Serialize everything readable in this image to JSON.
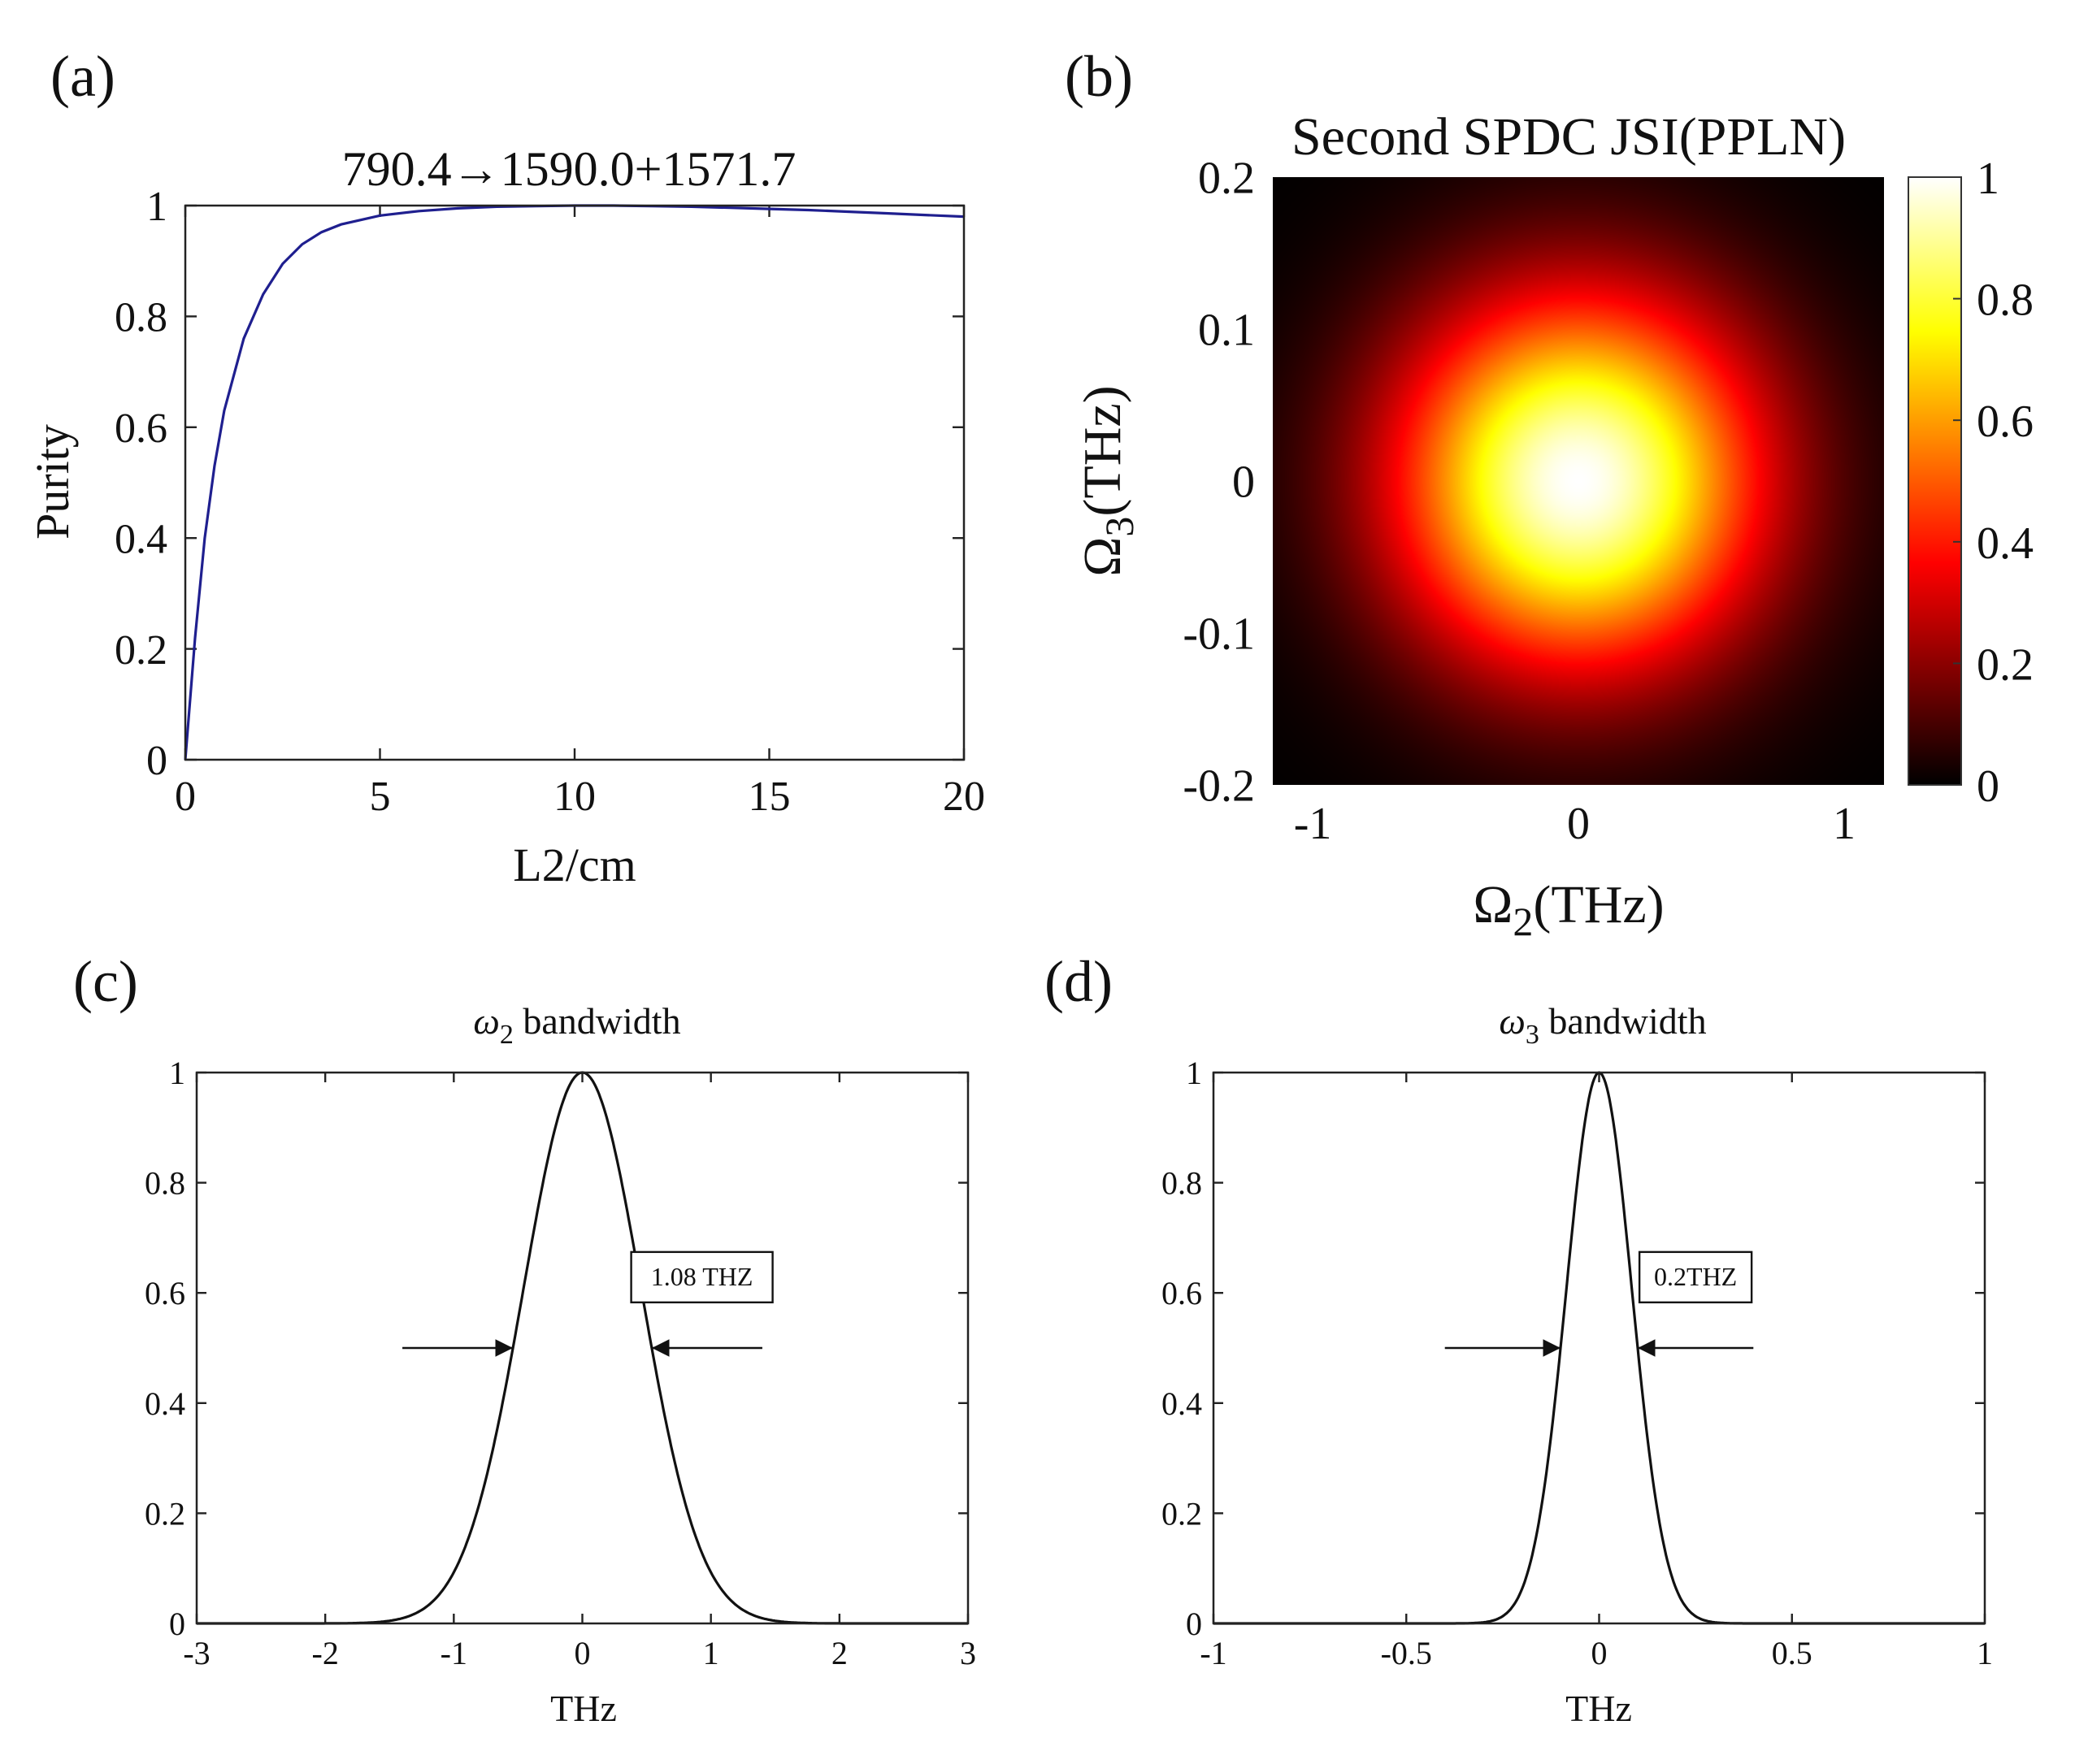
{
  "chart_data": [
    {
      "id": "a",
      "panel_label": "(a)",
      "type": "line",
      "title": "790.4→1590.0+1571.7",
      "xlabel": "L2/cm",
      "ylabel": "Purity",
      "xlim": [
        0,
        20
      ],
      "ylim": [
        0,
        1
      ],
      "xticks": [
        0,
        5,
        10,
        15,
        20
      ],
      "xtick_labels": [
        "0",
        "5",
        "10",
        "15",
        "20"
      ],
      "yticks": [
        0,
        0.2,
        0.4,
        0.6,
        0.8,
        1
      ],
      "ytick_labels": [
        "0",
        "0.2",
        "0.4",
        "0.6",
        "0.8",
        "1"
      ],
      "series": [
        {
          "name": "purity",
          "color": "#1f1f8f",
          "x": [
            0,
            0.25,
            0.5,
            0.75,
            1,
            1.5,
            2,
            2.5,
            3,
            3.5,
            4,
            5,
            6,
            7,
            8,
            9,
            10,
            11,
            12,
            13,
            14,
            15,
            16,
            17,
            18,
            19,
            20
          ],
          "y": [
            0.0,
            0.22,
            0.4,
            0.53,
            0.63,
            0.76,
            0.84,
            0.895,
            0.93,
            0.952,
            0.966,
            0.982,
            0.99,
            0.995,
            0.998,
            0.999,
            1.0,
            1.0,
            0.999,
            0.998,
            0.996,
            0.994,
            0.992,
            0.989,
            0.986,
            0.983,
            0.98
          ]
        }
      ]
    },
    {
      "id": "b",
      "panel_label": "(b)",
      "type": "heatmap",
      "title": "Second SPDC JSI(PPLN)",
      "xlabel_symbol": "Ω",
      "xlabel_sub": "2",
      "xlabel_unit": "(THz)",
      "ylabel_symbol": "Ω",
      "ylabel_sub": "3",
      "ylabel_unit": "(THz)",
      "xlim": [
        -1.15,
        1.15
      ],
      "ylim": [
        -0.2,
        0.2
      ],
      "xticks": [
        -1,
        0,
        1
      ],
      "xtick_labels": [
        "-1",
        "0",
        "1"
      ],
      "yticks": [
        -0.2,
        -0.1,
        0,
        0.1,
        0.2
      ],
      "ytick_labels": [
        "-0.2",
        "-0.1",
        "0",
        "0.1",
        "0.2"
      ],
      "sigma_x": 0.48,
      "sigma_y": 0.085,
      "colormap": "hot",
      "colorbar_range": [
        0,
        1
      ],
      "colorbar_ticks": [
        0,
        0.2,
        0.4,
        0.6,
        0.8,
        1
      ],
      "colorbar_tick_labels": [
        "0",
        "0.2",
        "0.4",
        "0.6",
        "0.8",
        "1"
      ]
    },
    {
      "id": "c",
      "panel_label": "(c)",
      "type": "line",
      "title_symbol": "ω",
      "title_sub": "2",
      "title_rest": " bandwidth",
      "xlabel": "THz",
      "xlim": [
        -3,
        3
      ],
      "ylim": [
        0,
        1
      ],
      "xticks": [
        -3,
        -2,
        -1,
        0,
        1,
        2,
        3
      ],
      "xtick_labels": [
        "-3",
        "-2",
        "-1",
        "0",
        "1",
        "2",
        "3"
      ],
      "yticks": [
        0,
        0.2,
        0.4,
        0.6,
        0.8,
        1
      ],
      "ytick_labels": [
        "0",
        "0.2",
        "0.4",
        "0.6",
        "0.8",
        "1"
      ],
      "series": [
        {
          "name": "gaussian",
          "color": "#111111",
          "center": 0,
          "fwhm": 1.08,
          "amplitude": 1
        }
      ],
      "annotation": {
        "text": "1.08 THZ",
        "box_x": 0.93,
        "box_y": 0.63,
        "left_arrow": {
          "from_x": -1.4,
          "to_x": -0.54,
          "y": 0.5
        },
        "right_arrow": {
          "from_x": 1.4,
          "to_x": 0.54,
          "y": 0.5
        }
      }
    },
    {
      "id": "d",
      "panel_label": "(d)",
      "type": "line",
      "title_symbol": "ω",
      "title_sub": "3",
      "title_rest": " bandwidth",
      "xlabel": "THz",
      "xlim": [
        -1,
        1
      ],
      "ylim": [
        0,
        1
      ],
      "xticks": [
        -1,
        -0.5,
        0,
        0.5,
        1
      ],
      "xtick_labels": [
        "-1",
        "-0.5",
        "0",
        "0.5",
        "1"
      ],
      "yticks": [
        0,
        0.2,
        0.4,
        0.6,
        0.8,
        1
      ],
      "ytick_labels": [
        "0",
        "0.2",
        "0.4",
        "0.6",
        "0.8",
        "1"
      ],
      "series": [
        {
          "name": "gaussian",
          "color": "#111111",
          "center": 0,
          "fwhm": 0.2,
          "amplitude": 1
        }
      ],
      "annotation": {
        "text": "0.2THZ",
        "box_x": 0.25,
        "box_y": 0.63,
        "left_arrow": {
          "from_x": -0.4,
          "to_x": -0.1,
          "y": 0.5
        },
        "right_arrow": {
          "from_x": 0.4,
          "to_x": 0.1,
          "y": 0.5
        }
      }
    }
  ]
}
